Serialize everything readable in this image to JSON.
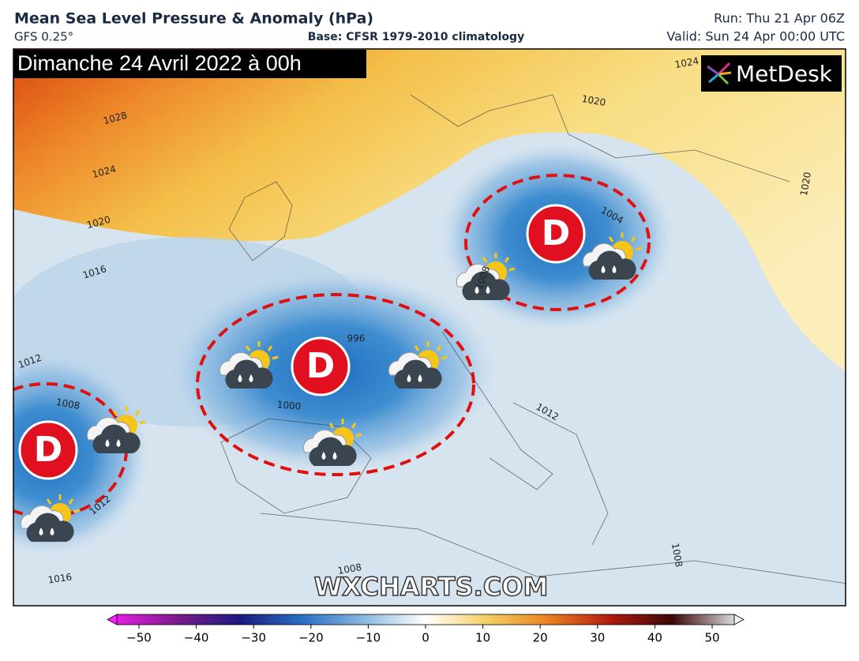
{
  "header": {
    "title": "Mean Sea Level Pressure & Anomaly (hPa)",
    "model": "GFS 0.25°",
    "base": "Base: CFSR 1979-2010 climatology",
    "run": "Run: Thu 21 Apr 06Z",
    "valid": "Valid: Sun 24 Apr 00:00 UTC"
  },
  "map": {
    "date_banner": "Dimanche 24 Avril 2022 à 00h",
    "logo": "MetDesk",
    "watermark": "WXCHARTS.COM",
    "lows": [
      "D",
      "D",
      "D"
    ],
    "isobar_labels": [
      1028,
      1024,
      1020,
      1016,
      1012,
      1008,
      1000,
      996,
      1004,
      1008,
      1012,
      1008,
      1008,
      1016,
      1012,
      1024,
      1020,
      1020
    ]
  },
  "colorbar": {
    "lim": [
      -50,
      50
    ],
    "ticks": [
      {
        "value": -50,
        "label": "−50"
      },
      {
        "value": -40,
        "label": "−40"
      },
      {
        "value": -30,
        "label": "−30"
      },
      {
        "value": -20,
        "label": "−20"
      },
      {
        "value": -10,
        "label": "−10"
      },
      0,
      10,
      20,
      30,
      40,
      50
    ]
  }
}
